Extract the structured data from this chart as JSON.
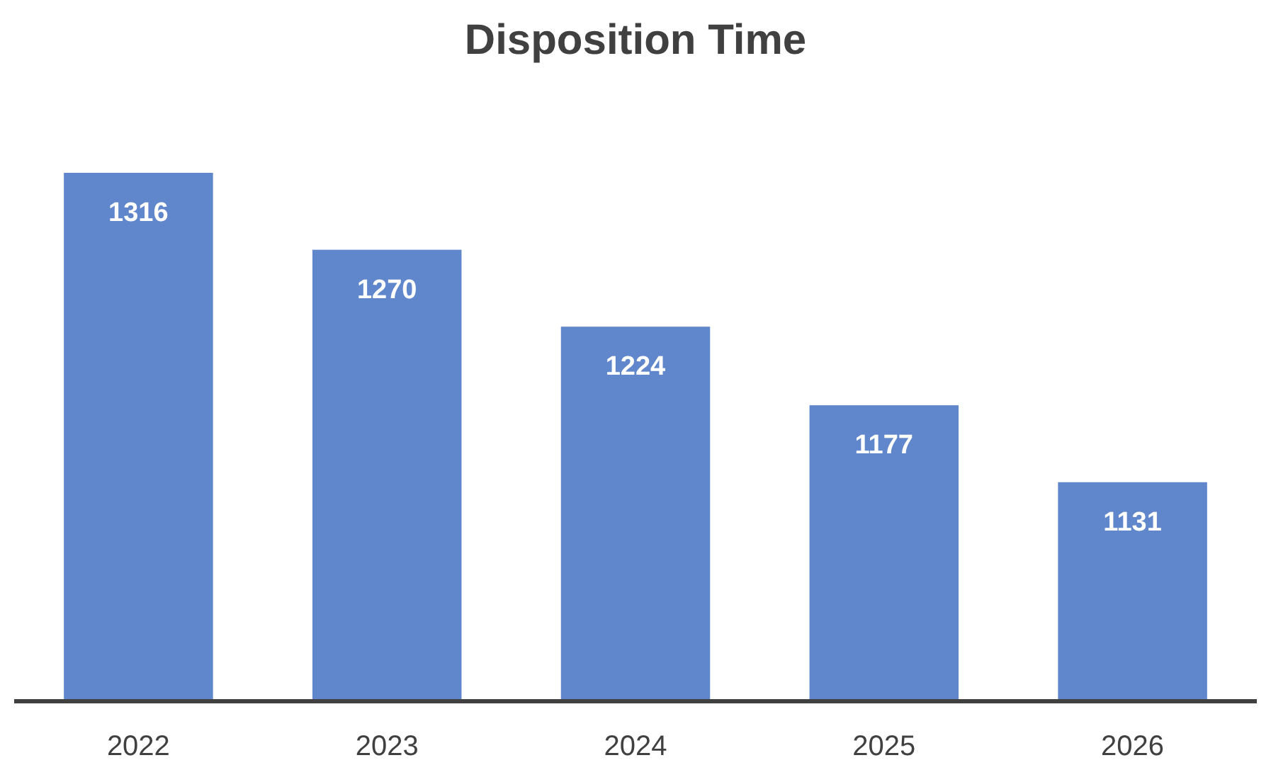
{
  "chart_data": {
    "type": "bar",
    "title": "Disposition Time",
    "categories": [
      "2022",
      "2023",
      "2024",
      "2025",
      "2026"
    ],
    "values": [
      1316,
      1270,
      1224,
      1177,
      1131
    ],
    "color": "#6086cc",
    "ylim": [
      1000,
      1316
    ],
    "tick_labels": "x",
    "data_labels": true
  }
}
